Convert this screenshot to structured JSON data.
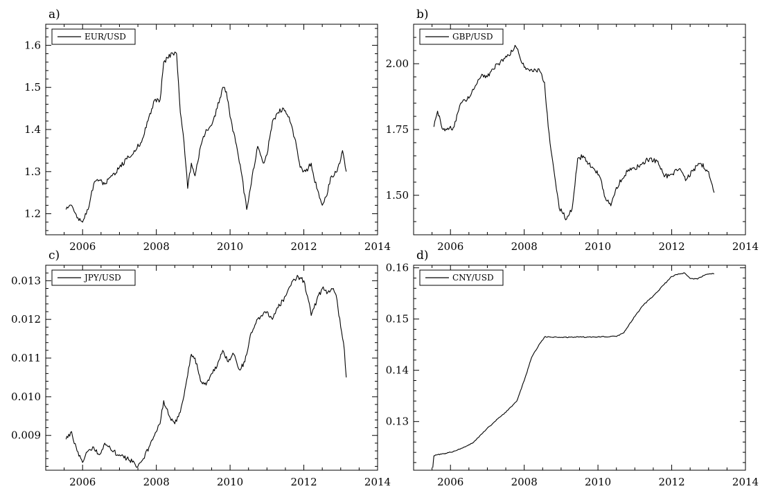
{
  "figure": {
    "panels": [
      "a)",
      "b)",
      "c)",
      "d)"
    ]
  },
  "chart_data": [
    {
      "type": "line",
      "panel_label": "a)",
      "title": "",
      "xlabel": "",
      "ylabel": "",
      "xlim": [
        2005,
        2014
      ],
      "ylim": [
        1.15,
        1.65
      ],
      "xticks": [
        2006,
        2008,
        2010,
        2012,
        2014
      ],
      "yticks": [
        1.2,
        1.3,
        1.4,
        1.5,
        1.6
      ],
      "ytick_labels": [
        "1.2",
        "1.3",
        "1.4",
        "1.5",
        "1.6"
      ],
      "legend": {
        "placement": "top-left",
        "entries": [
          "EUR/USD"
        ]
      },
      "grid": false,
      "series": [
        {
          "name": "EUR/USD",
          "x": [
            2005.55,
            2005.7,
            2005.85,
            2006.0,
            2006.15,
            2006.3,
            2006.45,
            2006.6,
            2006.8,
            2007.0,
            2007.2,
            2007.4,
            2007.6,
            2007.8,
            2007.95,
            2008.1,
            2008.2,
            2008.3,
            2008.45,
            2008.55,
            2008.65,
            2008.75,
            2008.85,
            2008.95,
            2009.05,
            2009.2,
            2009.35,
            2009.5,
            2009.65,
            2009.8,
            2009.9,
            2010.0,
            2010.15,
            2010.3,
            2010.45,
            2010.6,
            2010.75,
            2010.9,
            2011.0,
            2011.15,
            2011.3,
            2011.45,
            2011.6,
            2011.75,
            2011.9,
            2012.05,
            2012.2,
            2012.35,
            2012.5,
            2012.6,
            2012.75,
            2012.9,
            2013.05,
            2013.15
          ],
          "y": [
            1.21,
            1.22,
            1.19,
            1.18,
            1.21,
            1.27,
            1.28,
            1.27,
            1.29,
            1.31,
            1.33,
            1.35,
            1.37,
            1.43,
            1.47,
            1.47,
            1.56,
            1.57,
            1.58,
            1.58,
            1.44,
            1.37,
            1.26,
            1.32,
            1.29,
            1.36,
            1.4,
            1.41,
            1.45,
            1.5,
            1.49,
            1.43,
            1.37,
            1.3,
            1.21,
            1.29,
            1.36,
            1.32,
            1.34,
            1.42,
            1.44,
            1.45,
            1.43,
            1.38,
            1.31,
            1.3,
            1.32,
            1.26,
            1.22,
            1.24,
            1.29,
            1.3,
            1.35,
            1.3
          ]
        }
      ]
    },
    {
      "type": "line",
      "panel_label": "b)",
      "title": "",
      "xlabel": "",
      "ylabel": "",
      "xlim": [
        2005,
        2014
      ],
      "ylim": [
        1.35,
        2.15
      ],
      "xticks": [
        2006,
        2008,
        2010,
        2012,
        2014
      ],
      "yticks": [
        1.5,
        1.75,
        2.0
      ],
      "ytick_labels": [
        "1.50",
        "1.75",
        "2.00"
      ],
      "legend": {
        "placement": "top-left",
        "entries": [
          "GBP/USD"
        ]
      },
      "grid": false,
      "series": [
        {
          "name": "GBP/USD",
          "x": [
            2005.55,
            2005.65,
            2005.8,
            2005.95,
            2006.1,
            2006.25,
            2006.4,
            2006.55,
            2006.7,
            2006.85,
            2007.0,
            2007.15,
            2007.3,
            2007.45,
            2007.6,
            2007.75,
            2007.85,
            2007.95,
            2008.1,
            2008.25,
            2008.4,
            2008.55,
            2008.65,
            2008.75,
            2008.85,
            2008.95,
            2009.05,
            2009.15,
            2009.3,
            2009.45,
            2009.6,
            2009.75,
            2009.9,
            2010.05,
            2010.2,
            2010.35,
            2010.5,
            2010.65,
            2010.8,
            2011.0,
            2011.2,
            2011.4,
            2011.6,
            2011.8,
            2012.0,
            2012.2,
            2012.4,
            2012.6,
            2012.8,
            2013.0,
            2013.15
          ],
          "y": [
            1.76,
            1.82,
            1.75,
            1.75,
            1.76,
            1.84,
            1.86,
            1.88,
            1.92,
            1.96,
            1.95,
            1.98,
            2.0,
            2.02,
            2.03,
            2.07,
            2.04,
            2.0,
            1.98,
            1.97,
            1.98,
            1.93,
            1.76,
            1.65,
            1.55,
            1.45,
            1.43,
            1.41,
            1.45,
            1.64,
            1.65,
            1.62,
            1.6,
            1.57,
            1.49,
            1.46,
            1.53,
            1.56,
            1.59,
            1.6,
            1.62,
            1.64,
            1.63,
            1.57,
            1.58,
            1.6,
            1.56,
            1.6,
            1.62,
            1.59,
            1.51
          ]
        }
      ]
    },
    {
      "type": "line",
      "panel_label": "c)",
      "title": "",
      "xlabel": "",
      "ylabel": "",
      "xlim": [
        2005,
        2014
      ],
      "ylim": [
        0.0081,
        0.0134
      ],
      "xticks": [
        2006,
        2008,
        2010,
        2012,
        2014
      ],
      "yticks": [
        0.009,
        0.01,
        0.011,
        0.012,
        0.013
      ],
      "ytick_labels": [
        "0.009",
        "0.010",
        "0.011",
        "0.012",
        "0.013"
      ],
      "legend": {
        "placement": "top-left",
        "entries": [
          "JPY/USD"
        ]
      },
      "grid": false,
      "series": [
        {
          "name": "JPY/USD",
          "x": [
            2005.55,
            2005.7,
            2005.85,
            2006.0,
            2006.15,
            2006.3,
            2006.45,
            2006.6,
            2006.8,
            2007.0,
            2007.2,
            2007.4,
            2007.5,
            2007.65,
            2007.8,
            2007.95,
            2008.1,
            2008.2,
            2008.35,
            2008.5,
            2008.65,
            2008.8,
            2008.95,
            2009.05,
            2009.2,
            2009.35,
            2009.5,
            2009.65,
            2009.8,
            2009.95,
            2010.1,
            2010.25,
            2010.4,
            2010.55,
            2010.7,
            2010.85,
            2011.0,
            2011.15,
            2011.3,
            2011.5,
            2011.7,
            2011.85,
            2012.0,
            2012.1,
            2012.2,
            2012.35,
            2012.5,
            2012.65,
            2012.8,
            2012.9,
            2013.0,
            2013.1,
            2013.15
          ],
          "y": [
            0.0089,
            0.0091,
            0.0086,
            0.0083,
            0.0086,
            0.0087,
            0.0085,
            0.0088,
            0.0086,
            0.0085,
            0.0084,
            0.0083,
            0.0082,
            0.0084,
            0.0087,
            0.009,
            0.0093,
            0.0099,
            0.0095,
            0.0093,
            0.0096,
            0.0103,
            0.0111,
            0.011,
            0.0104,
            0.0103,
            0.0106,
            0.0108,
            0.0112,
            0.0109,
            0.0111,
            0.0107,
            0.0109,
            0.0116,
            0.0119,
            0.0121,
            0.0122,
            0.012,
            0.0123,
            0.0126,
            0.013,
            0.0131,
            0.013,
            0.0126,
            0.0121,
            0.0125,
            0.0128,
            0.0127,
            0.0128,
            0.0125,
            0.0118,
            0.0112,
            0.0105
          ]
        }
      ]
    },
    {
      "type": "line",
      "panel_label": "d)",
      "title": "",
      "xlabel": "",
      "ylabel": "",
      "xlim": [
        2005,
        2014
      ],
      "ylim": [
        0.1205,
        0.1605
      ],
      "xticks": [
        2006,
        2008,
        2010,
        2012,
        2014
      ],
      "yticks": [
        0.13,
        0.14,
        0.15,
        0.16
      ],
      "ytick_labels": [
        "0.13",
        "0.14",
        "0.15",
        "0.16"
      ],
      "legend": {
        "placement": "top-left",
        "entries": [
          "CNY/USD"
        ]
      },
      "grid": false,
      "series": [
        {
          "name": "CNY/USD",
          "x": [
            2005.52,
            2005.55,
            2005.6,
            2005.8,
            2006.0,
            2006.3,
            2006.6,
            2006.9,
            2007.2,
            2007.5,
            2007.8,
            2008.0,
            2008.2,
            2008.4,
            2008.55,
            2008.7,
            2009.0,
            2009.5,
            2010.0,
            2010.5,
            2010.7,
            2010.85,
            2011.0,
            2011.2,
            2011.5,
            2011.8,
            2012.0,
            2012.2,
            2012.35,
            2012.5,
            2012.7,
            2012.9,
            2013.1,
            2013.15
          ],
          "y": [
            0.121,
            0.1233,
            0.1235,
            0.1237,
            0.124,
            0.1248,
            0.1258,
            0.128,
            0.13,
            0.1318,
            0.134,
            0.138,
            0.1425,
            0.145,
            0.1465,
            0.1465,
            0.1464,
            0.1465,
            0.1465,
            0.1466,
            0.1473,
            0.149,
            0.1505,
            0.1525,
            0.1545,
            0.1568,
            0.1583,
            0.1588,
            0.159,
            0.1579,
            0.1578,
            0.1586,
            0.1589,
            0.1588
          ]
        }
      ]
    }
  ]
}
